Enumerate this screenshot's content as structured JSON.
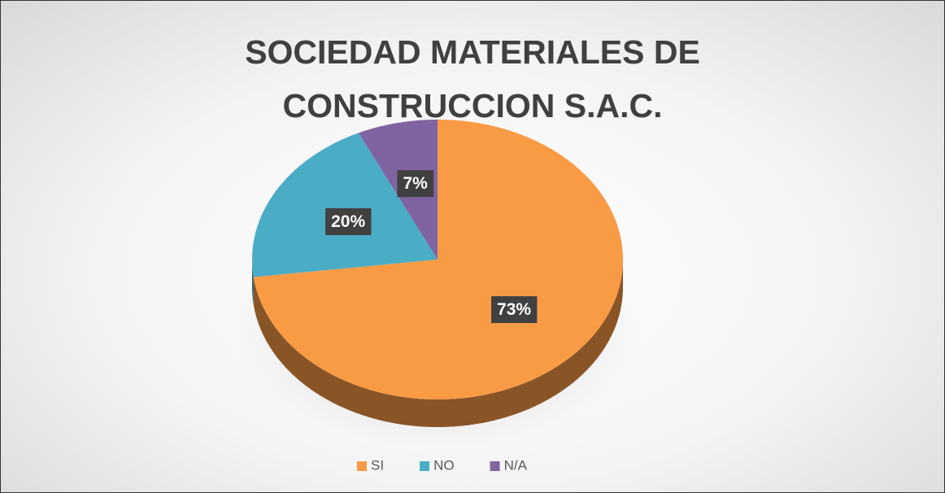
{
  "chart_data": {
    "type": "pie",
    "title": "SOCIEDAD MATERIALES DE CONSTRUCCION S.A.C.",
    "categories": [
      "SI",
      "NO",
      "N/A"
    ],
    "values": [
      73,
      20,
      7
    ],
    "value_labels": [
      "73%",
      "20%",
      "7%"
    ],
    "colors": [
      "#f99b45",
      "#4bacc6",
      "#8064a2"
    ],
    "legend": "bottom"
  }
}
